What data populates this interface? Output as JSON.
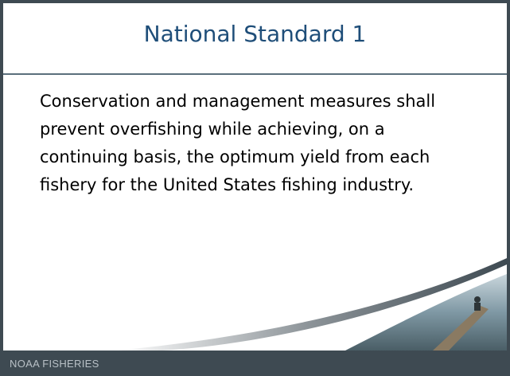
{
  "header": {
    "title": "National Standard 1"
  },
  "body": {
    "lines": [
      "Conservation and management measures shall",
      "prevent overfishing while achieving, on a",
      "continuing basis, the optimum yield from each",
      "fishery for the United States fishing industry."
    ]
  },
  "footer": {
    "label": "NOAA FISHERIES"
  }
}
